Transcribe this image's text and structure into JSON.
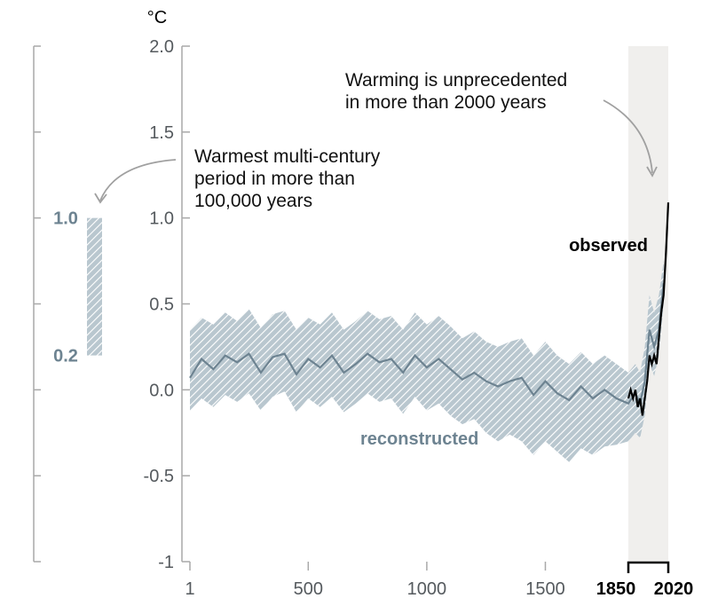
{
  "chart_data": {
    "type": "line",
    "unit_label": "°C",
    "ylim": [
      -1,
      2
    ],
    "yticks": [
      "2.0",
      "1.5",
      "1.0",
      "0.5",
      "0.0",
      "-0.5",
      "-1"
    ],
    "xticks": [
      "1",
      "500",
      "1000",
      "1500"
    ],
    "xticks_bold": [
      "1850",
      "2020"
    ],
    "grid": false,
    "series": [
      {
        "name": "reconstructed",
        "color": "#6d8391",
        "band_color": "#b9c7cf",
        "x": [
          1,
          50,
          100,
          150,
          200,
          250,
          300,
          350,
          400,
          450,
          500,
          550,
          600,
          650,
          700,
          750,
          800,
          850,
          900,
          950,
          1000,
          1050,
          1100,
          1150,
          1200,
          1250,
          1300,
          1350,
          1400,
          1450,
          1500,
          1550,
          1600,
          1650,
          1700,
          1750,
          1800,
          1850,
          1880,
          1900,
          1920,
          1940,
          1960,
          1980,
          2000
        ],
        "values": [
          0.07,
          0.18,
          0.12,
          0.2,
          0.16,
          0.21,
          0.1,
          0.19,
          0.21,
          0.09,
          0.18,
          0.13,
          0.2,
          0.1,
          0.15,
          0.21,
          0.16,
          0.18,
          0.1,
          0.2,
          0.13,
          0.18,
          0.12,
          0.06,
          0.1,
          0.05,
          0.02,
          0.05,
          0.07,
          -0.03,
          0.05,
          -0.02,
          -0.06,
          0.02,
          -0.05,
          0.0,
          -0.05,
          -0.08,
          -0.02,
          -0.08,
          0.05,
          0.35,
          0.25,
          0.35,
          0.62
        ],
        "lower": [
          -0.12,
          -0.05,
          -0.1,
          -0.03,
          -0.07,
          -0.02,
          -0.12,
          -0.04,
          -0.01,
          -0.13,
          -0.05,
          -0.1,
          -0.04,
          -0.13,
          -0.08,
          -0.02,
          -0.07,
          -0.05,
          -0.14,
          -0.04,
          -0.12,
          -0.08,
          -0.15,
          -0.2,
          -0.17,
          -0.25,
          -0.3,
          -0.26,
          -0.3,
          -0.38,
          -0.3,
          -0.36,
          -0.42,
          -0.34,
          -0.38,
          -0.33,
          -0.32,
          -0.3,
          -0.25,
          -0.28,
          -0.15,
          0.15,
          0.08,
          0.2,
          0.5
        ],
        "upper": [
          0.35,
          0.42,
          0.38,
          0.45,
          0.4,
          0.47,
          0.36,
          0.44,
          0.46,
          0.35,
          0.42,
          0.38,
          0.45,
          0.35,
          0.4,
          0.46,
          0.41,
          0.43,
          0.35,
          0.45,
          0.38,
          0.43,
          0.37,
          0.3,
          0.34,
          0.28,
          0.25,
          0.28,
          0.3,
          0.2,
          0.28,
          0.2,
          0.15,
          0.22,
          0.15,
          0.2,
          0.15,
          0.1,
          0.15,
          0.1,
          0.25,
          0.55,
          0.45,
          0.55,
          0.75
        ]
      },
      {
        "name": "observed",
        "color": "#000000",
        "x": [
          1850,
          1860,
          1870,
          1880,
          1890,
          1900,
          1910,
          1920,
          1930,
          1940,
          1950,
          1960,
          1970,
          1980,
          1990,
          2000,
          2010,
          2020
        ],
        "values": [
          -0.05,
          0.0,
          -0.05,
          0.0,
          -0.1,
          -0.05,
          -0.15,
          -0.05,
          0.05,
          0.2,
          0.15,
          0.2,
          0.15,
          0.3,
          0.45,
          0.55,
          0.8,
          1.09
        ]
      }
    ],
    "side_panel": {
      "bar_low": 0.2,
      "bar_high": 1.0,
      "label_high": "1.0",
      "label_low": "0.2",
      "color": "#b9c7cf"
    },
    "highlight_period": [
      1850,
      2020
    ],
    "annotations": {
      "warmest_lines": [
        "Warmest multi-century",
        "period in more than",
        "100,000 years"
      ],
      "unprecedented_lines": [
        "Warming is unprecedented",
        "in more than 2000 years"
      ]
    }
  }
}
